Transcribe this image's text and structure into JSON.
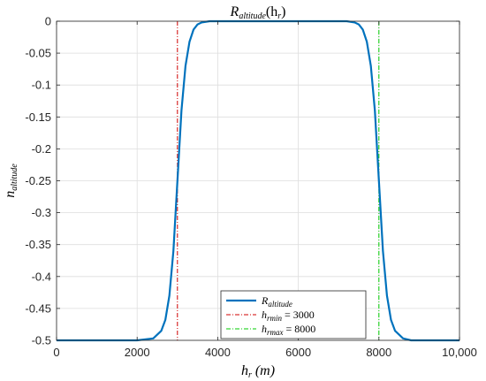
{
  "chart_data": {
    "type": "line",
    "title": {
      "base": "R",
      "sub": "altitude",
      "tail": "(h",
      "tail_sub": "r",
      "close": ")"
    },
    "xlabel": {
      "base": "h",
      "sub": "r",
      "tail": " (m)"
    },
    "ylabel": {
      "base": "n",
      "sub": "altitude"
    },
    "xlim": [
      0,
      10000
    ],
    "ylim": [
      -0.5,
      0
    ],
    "grid": true,
    "x_ticks": [
      0,
      2000,
      4000,
      6000,
      8000,
      10000
    ],
    "x_tick_labels": [
      "0",
      "2000",
      "4000",
      "6000",
      "8000",
      "10,000"
    ],
    "y_ticks": [
      0,
      -0.05,
      -0.1,
      -0.15,
      -0.2,
      -0.25,
      -0.3,
      -0.35,
      -0.4,
      -0.45,
      -0.5
    ],
    "y_tick_labels": [
      "0",
      "-0.05",
      "-0.1",
      "-0.15",
      "-0.2",
      "-0.25",
      "-0.3",
      "-0.35",
      "-0.4",
      "-0.45",
      "-0.5"
    ],
    "series": [
      {
        "name": "R_altitude",
        "color": "#0072BD",
        "x": [
          0,
          2000,
          2400,
          2600,
          2700,
          2800,
          2900,
          3000,
          3100,
          3200,
          3300,
          3400,
          3500,
          3600,
          3800,
          4000,
          5000,
          6000,
          7000,
          7200,
          7400,
          7500,
          7600,
          7700,
          7800,
          7900,
          8000,
          8100,
          8200,
          8300,
          8400,
          8600,
          8800,
          9000,
          10000
        ],
        "y": [
          -0.5,
          -0.5,
          -0.497,
          -0.485,
          -0.468,
          -0.43,
          -0.36,
          -0.25,
          -0.14,
          -0.07,
          -0.032,
          -0.013,
          -0.005,
          -0.002,
          0,
          0,
          0,
          0,
          0,
          0,
          -0.002,
          -0.005,
          -0.013,
          -0.032,
          -0.07,
          -0.14,
          -0.25,
          -0.36,
          -0.43,
          -0.468,
          -0.485,
          -0.497,
          -0.5,
          -0.5,
          -0.5
        ]
      }
    ],
    "vlines": [
      {
        "x": 3000,
        "color": "#D00000",
        "dash": "dashdot",
        "legend_base": "h",
        "legend_sub": "rmin",
        "legend_value": "=  3000"
      },
      {
        "x": 8000,
        "color": "#00CC00",
        "dash": "dashdot",
        "legend_base": "h",
        "legend_sub": "rmax",
        "legend_value": "=  8000"
      }
    ],
    "legend": {
      "position": "bottom-center",
      "entries": [
        {
          "base": "R",
          "sub": "altitude",
          "value": ""
        },
        {
          "base": "h",
          "sub": "rmin",
          "value": "=  3000"
        },
        {
          "base": "h",
          "sub": "rmax",
          "value": "=  8000"
        }
      ]
    }
  }
}
